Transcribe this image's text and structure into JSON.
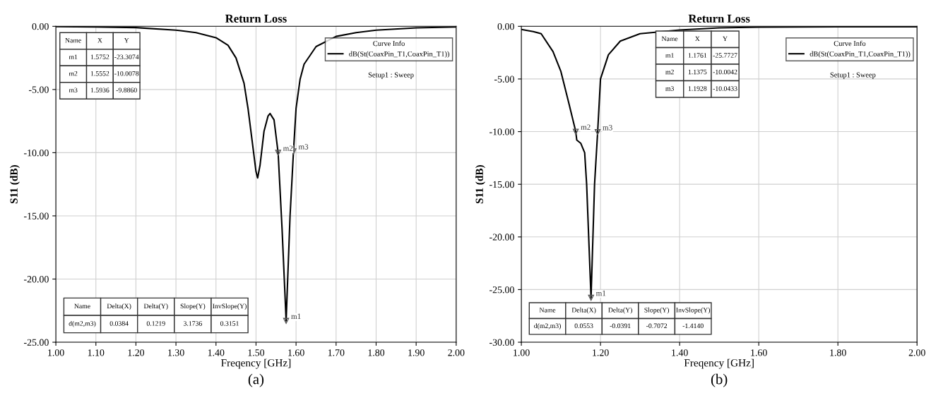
{
  "chart_data": [
    {
      "type": "line",
      "title": "Return Loss",
      "xlabel": "Freqency [GHz]",
      "ylabel": "S11 (dB)",
      "legend_title": "Curve Info",
      "legend": "top right",
      "grid": true,
      "marker": "none",
      "line_style": "solid",
      "xlim": [
        1.0,
        2.0
      ],
      "ylim": [
        -25,
        0
      ],
      "xticks": [
        {
          "value": 1.0,
          "label": "1.00"
        },
        {
          "value": 1.1,
          "label": "1.10"
        },
        {
          "value": 1.2,
          "label": "1.20"
        },
        {
          "value": 1.3,
          "label": "1.30"
        },
        {
          "value": 1.4,
          "label": "1.40"
        },
        {
          "value": 1.5,
          "label": "1.50"
        },
        {
          "value": 1.6,
          "label": "1.60"
        },
        {
          "value": 1.7,
          "label": "1.70"
        },
        {
          "value": 1.8,
          "label": "1.80"
        },
        {
          "value": 1.9,
          "label": "1.90"
        },
        {
          "value": 2.0,
          "label": "2.00"
        }
      ],
      "yticks": [
        {
          "value": 0,
          "label": "0.00"
        },
        {
          "value": -5,
          "label": "-5.00"
        },
        {
          "value": -10,
          "label": "-10.00"
        },
        {
          "value": -15,
          "label": "-15.00"
        },
        {
          "value": -20,
          "label": "-20.00"
        },
        {
          "value": -25,
          "label": "-25.00"
        }
      ],
      "series": [
        {
          "name": "dB(St(CoaxPin_T1,CoaxPin_T1))",
          "color": "#000000",
          "x": [
            1.0,
            1.1,
            1.2,
            1.3,
            1.35,
            1.4,
            1.43,
            1.45,
            1.47,
            1.48,
            1.49,
            1.5,
            1.504,
            1.51,
            1.52,
            1.53,
            1.535,
            1.545,
            1.5552,
            1.565,
            1.5752,
            1.585,
            1.5936,
            1.6,
            1.61,
            1.62,
            1.65,
            1.7,
            1.75,
            1.8,
            1.9,
            2.0
          ],
          "values": [
            -0.02,
            -0.05,
            -0.1,
            -0.3,
            -0.5,
            -0.9,
            -1.5,
            -2.5,
            -4.5,
            -6.5,
            -9.0,
            -11.5,
            -12.0,
            -11.0,
            -8.3,
            -7.1,
            -6.9,
            -7.4,
            -10.0078,
            -16.0,
            -23.3074,
            -15.0,
            -9.886,
            -6.5,
            -4.2,
            -3.0,
            -1.6,
            -0.8,
            -0.5,
            -0.3,
            -0.12,
            -0.05
          ]
        }
      ],
      "annotations": [
        {
          "text": "m1",
          "x": 1.5752,
          "y": -23.3074
        },
        {
          "text": "m2",
          "x": 1.5552,
          "y": -10.0078
        },
        {
          "text": "m3",
          "x": 1.5936,
          "y": -9.886
        },
        "Setup1 : Sweep",
        "Name\tX\tY\nm1\t1.5752\t-23.3074\nm2\t1.5552\t-10.0078\nm3\t1.5936\t-9.8860",
        "Name\tDelta(X)\tDelta(Y)\tSlope(Y)\tInvSlope(Y)\nd(m2,m3)\t0.0384\t0.1219\t3.1736\t0.3151",
        "(a)"
      ]
    },
    {
      "type": "line",
      "title": "Return Loss",
      "xlabel": "Freqency [GHz]",
      "ylabel": "S11 (dB)",
      "legend_title": "Curve Info",
      "legend": "top right",
      "grid": true,
      "marker": "none",
      "line_style": "solid",
      "xlim": [
        1.0,
        2.0
      ],
      "ylim": [
        -30,
        0
      ],
      "xticks": [
        {
          "value": 1.0,
          "label": "1.00"
        },
        {
          "value": 1.2,
          "label": "1.20"
        },
        {
          "value": 1.4,
          "label": "1.40"
        },
        {
          "value": 1.6,
          "label": "1.60"
        },
        {
          "value": 1.8,
          "label": "1.80"
        },
        {
          "value": 2.0,
          "label": "2.00"
        }
      ],
      "yticks": [
        {
          "value": 0,
          "label": "0.00"
        },
        {
          "value": -5,
          "label": "-5.00"
        },
        {
          "value": -10,
          "label": "-10.00"
        },
        {
          "value": -15,
          "label": "-15.00"
        },
        {
          "value": -20,
          "label": "-20.00"
        },
        {
          "value": -25,
          "label": "-25.00"
        },
        {
          "value": -30,
          "label": "-30.00"
        }
      ],
      "series": [
        {
          "name": "dB(St(CoaxPin_T1,CoaxPin_T1))",
          "color": "#000000",
          "x": [
            1.0,
            1.03,
            1.05,
            1.08,
            1.1,
            1.12,
            1.1375,
            1.14,
            1.15,
            1.16,
            1.165,
            1.1761,
            1.185,
            1.1928,
            1.2,
            1.22,
            1.25,
            1.3,
            1.4,
            1.5,
            1.6,
            1.8,
            2.0
          ],
          "values": [
            -0.3,
            -0.5,
            -0.7,
            -2.4,
            -4.3,
            -7.3,
            -10.0042,
            -10.8,
            -11.1,
            -12.0,
            -15.0,
            -25.7727,
            -15.0,
            -10.0433,
            -5.0,
            -2.7,
            -1.4,
            -0.7,
            -0.35,
            -0.15,
            -0.08,
            -0.05,
            -0.05
          ]
        }
      ],
      "annotations": [
        {
          "text": "m1",
          "x": 1.1761,
          "y": -25.7727
        },
        {
          "text": "m2",
          "x": 1.1375,
          "y": -10.0042
        },
        {
          "text": "m3",
          "x": 1.1928,
          "y": -10.0433
        },
        "Setup1 : Sweep",
        "Name\tX\tY\nm1\t1.1761\t-25.7727\nm2\t1.1375\t-10.0042\nm3\t1.1928\t-10.0433",
        "Name\tDelta(X)\tDelta(Y)\tSlope(Y)\tInvSlope(Y)\nd(m2,m3)\t0.0553\t-0.0391\t-0.7072\t-1.4140",
        "(b)"
      ]
    }
  ]
}
